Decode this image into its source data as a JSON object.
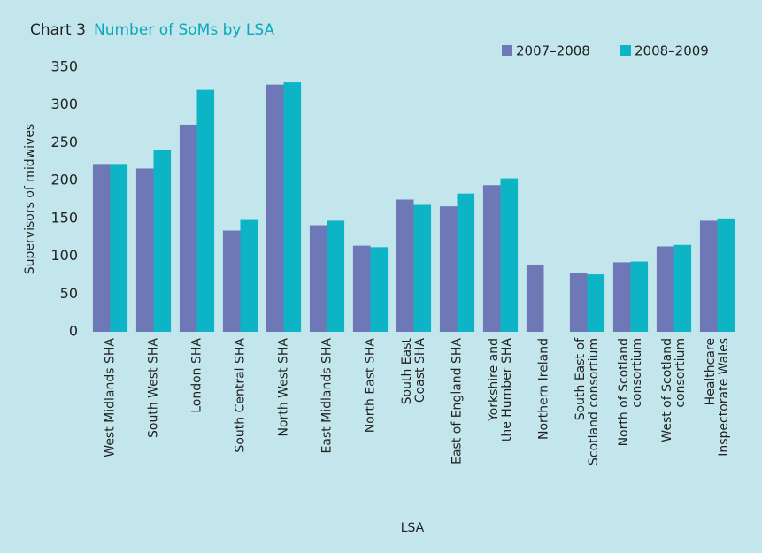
{
  "chart_data": {
    "type": "bar",
    "title_prefix": "Chart 3",
    "title": "Number of SoMs by LSA",
    "y_label": "Supervisors of midwives",
    "x_label": "LSA",
    "categories": [
      [
        "West Midlands SHA"
      ],
      [
        "South West SHA"
      ],
      [
        "London SHA"
      ],
      [
        "South Central SHA"
      ],
      [
        "North West SHA"
      ],
      [
        "East Midlands SHA"
      ],
      [
        "North East SHA"
      ],
      [
        "South East",
        "Coast SHA"
      ],
      [
        "East of England SHA"
      ],
      [
        "Yorkshire and",
        "the Humber SHA"
      ],
      [
        "Northern Ireland"
      ],
      [
        "South East of",
        "Scotland consortium"
      ],
      [
        "North of Scotland",
        "consortium"
      ],
      [
        "West of Scotland",
        "consortium"
      ],
      [
        "Healthcare",
        "Inspectorate Wales"
      ]
    ],
    "series": [
      {
        "name": "2007–2008",
        "color": "#6e78b6",
        "values": [
          222,
          216,
          274,
          134,
          327,
          141,
          114,
          175,
          166,
          194,
          89,
          78,
          92,
          113,
          147
        ]
      },
      {
        "name": "2008–2009",
        "color": "#0db4c6",
        "values": [
          222,
          241,
          320,
          148,
          330,
          147,
          112,
          168,
          183,
          203,
          null,
          76,
          93,
          115,
          150
        ]
      }
    ],
    "ylim": [
      0,
      350
    ],
    "yticks": [
      0,
      50,
      100,
      150,
      200,
      250,
      300,
      350
    ],
    "grid": false,
    "legend": "top-right"
  }
}
